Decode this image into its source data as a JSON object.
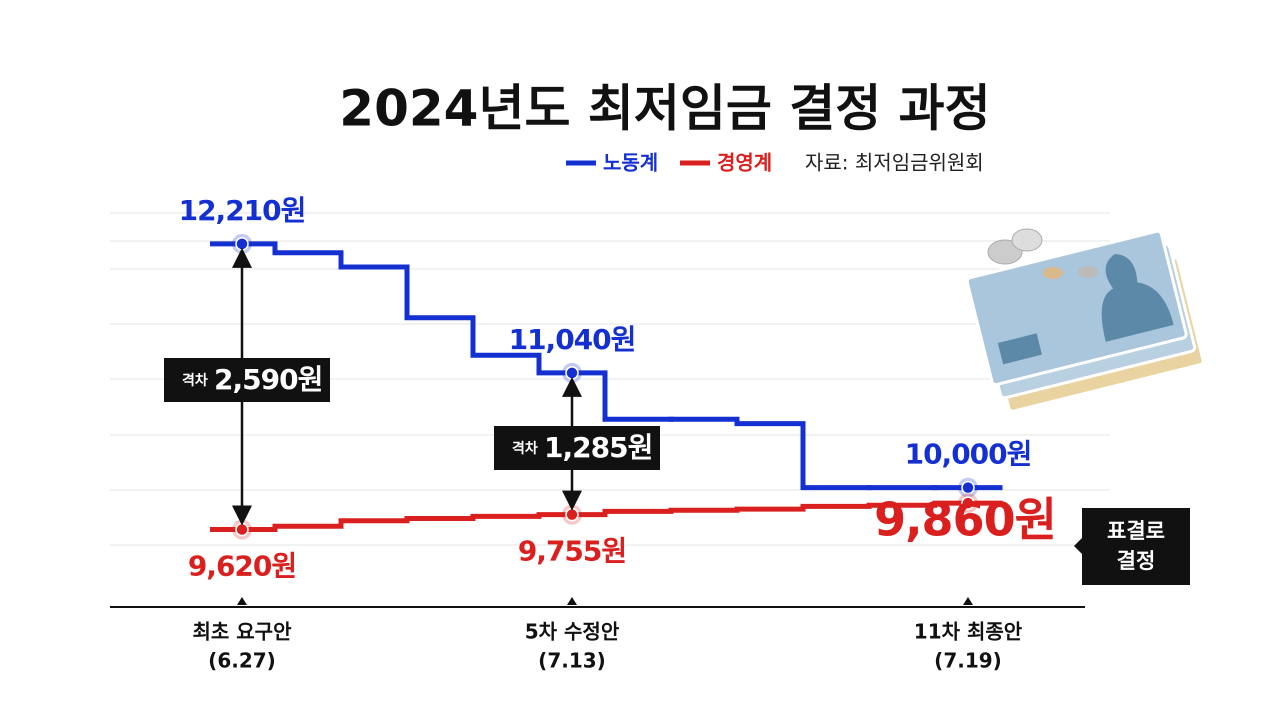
{
  "chart_data": {
    "type": "step",
    "title": "2024년도 최저임금 결정 과정",
    "source": "자료: 최저임금위원회",
    "categories": [
      "최초 요구안",
      null,
      null,
      null,
      null,
      "5차 수정안",
      null,
      null,
      null,
      null,
      null,
      "11차 최종안"
    ],
    "dates": [
      "(6.27)",
      null,
      null,
      null,
      null,
      "(7.13)",
      null,
      null,
      null,
      null,
      null,
      "(7.19)"
    ],
    "series": [
      {
        "name": "노동계",
        "color": "#1530d0",
        "values": [
          12210,
          12130,
          12000,
          11540,
          11200,
          11040,
          10620,
          10620,
          10580,
          10000,
          10000,
          10000
        ],
        "value_labels": [
          "12,210원",
          null,
          null,
          null,
          null,
          "11,040원",
          null,
          null,
          null,
          null,
          null,
          "10,000원"
        ]
      },
      {
        "name": "경영계",
        "color": "#d9201e",
        "values": [
          9620,
          9650,
          9700,
          9720,
          9740,
          9755,
          9785,
          9795,
          9805,
          9830,
          9840,
          9860
        ],
        "value_labels": [
          "9,620원",
          null,
          null,
          null,
          null,
          "9,755원",
          null,
          null,
          null,
          null,
          null,
          "9,860원"
        ]
      }
    ],
    "ylim": [
      9480,
      12490
    ],
    "annotations": [
      {
        "prefix": "격차",
        "text": "2,590원"
      },
      {
        "prefix": "격차",
        "text": "1,285원"
      }
    ],
    "decision": [
      "표결로",
      "결정"
    ]
  }
}
